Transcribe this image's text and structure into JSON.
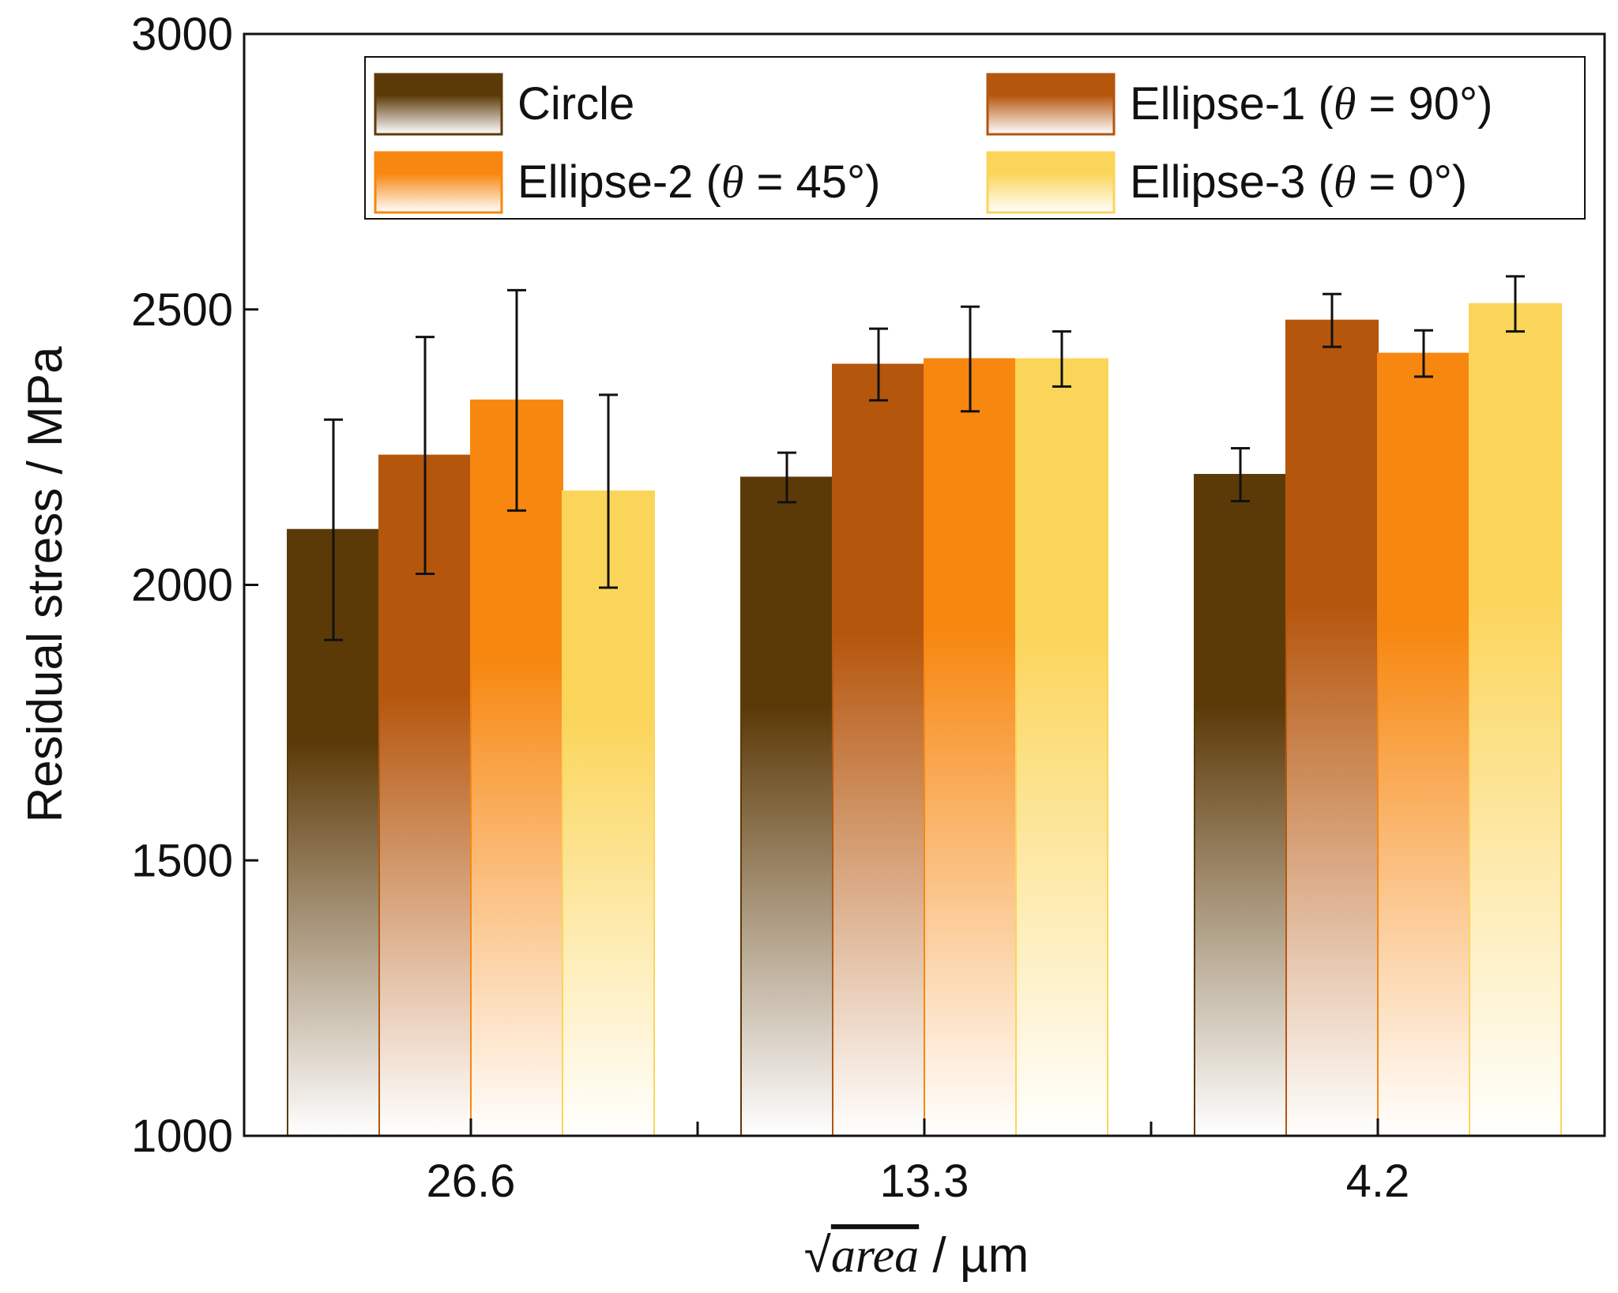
{
  "chart_data": {
    "type": "bar",
    "title": "",
    "xlabel": {
      "radical": "√",
      "variable": "area",
      "unit": " / µm"
    },
    "ylabel": "Residual stress / MPa",
    "ylim": [
      1000,
      3000
    ],
    "yticks": [
      1000,
      1500,
      2000,
      2500,
      3000
    ],
    "categories": [
      "26.6",
      "13.3",
      "4.2"
    ],
    "legend_position": "top-right",
    "series": [
      {
        "name": "Circle",
        "legend_parts": {
          "prefix": "Circle",
          "symbol": "",
          "suffix": ""
        },
        "color": "#5c3a08",
        "values": [
          2100,
          2195,
          2200
        ],
        "errors": [
          200,
          45,
          48
        ]
      },
      {
        "name": "Ellipse-1 (θ = 90°)",
        "legend_parts": {
          "prefix": "Ellipse-1 (",
          "symbol": "θ",
          "suffix": " = 90°)"
        },
        "color": "#b5560d",
        "values": [
          2235,
          2400,
          2480
        ],
        "errors": [
          215,
          65,
          48
        ]
      },
      {
        "name": "Ellipse-2 (θ = 45°)",
        "legend_parts": {
          "prefix": "Ellipse-2 (",
          "symbol": "θ",
          "suffix": " = 45°)"
        },
        "color": "#f7870f",
        "values": [
          2335,
          2410,
          2420
        ],
        "errors": [
          200,
          95,
          42
        ]
      },
      {
        "name": "Ellipse-3 (θ = 0°)",
        "legend_parts": {
          "prefix": "Ellipse-3 (",
          "symbol": "θ",
          "suffix": " = 0°)"
        },
        "color": "#fbd55a",
        "values": [
          2170,
          2410,
          2510
        ],
        "errors": [
          175,
          50,
          50
        ]
      }
    ]
  }
}
